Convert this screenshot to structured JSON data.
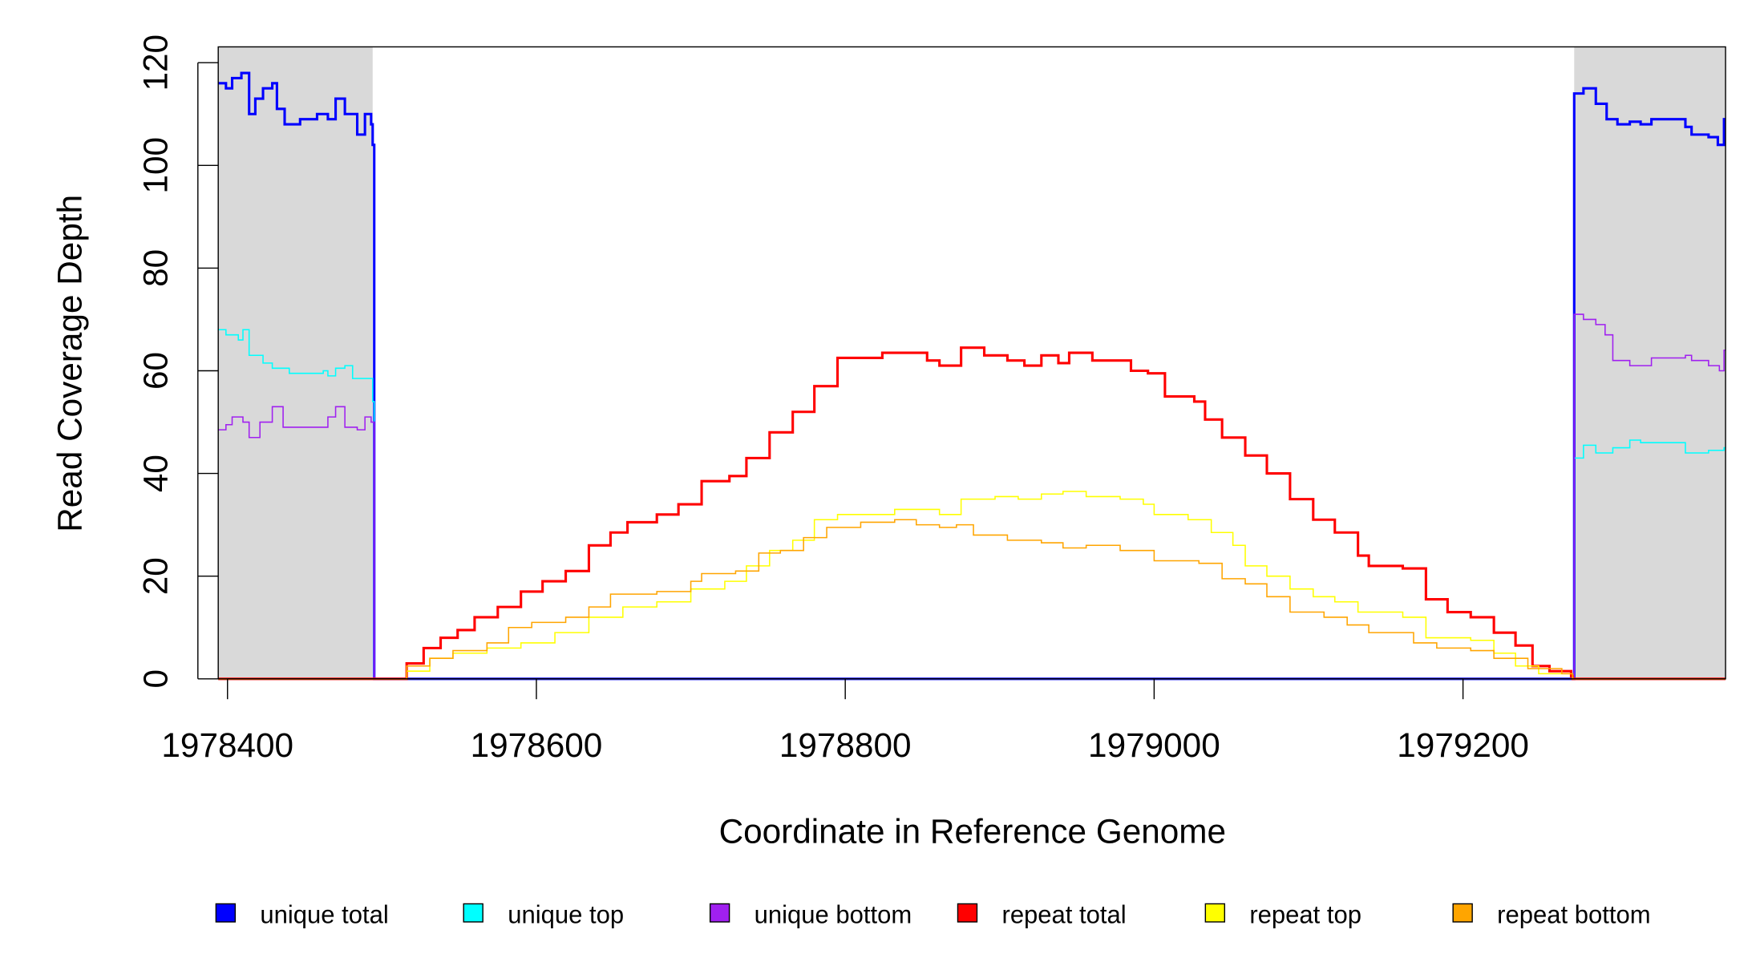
{
  "chart_data": {
    "type": "line",
    "title": "",
    "xlabel": "Coordinate in Reference Genome",
    "ylabel": "Read Coverage Depth",
    "xlim": [
      1978394,
      1979370
    ],
    "ylim": [
      0,
      120
    ],
    "x_ticks": [
      1978400,
      1978600,
      1978800,
      1979000,
      1979200
    ],
    "x_tick_labels": [
      "1978400",
      "1978600",
      "1978800",
      "1979000",
      "1979200"
    ],
    "y_ticks": [
      0,
      20,
      40,
      60,
      80,
      100,
      120
    ],
    "y_tick_labels": [
      "0",
      "20",
      "40",
      "60",
      "80",
      "100",
      "120"
    ],
    "grid": false,
    "legend_position": "bottom",
    "shaded_regions": [
      {
        "x0": 1978394,
        "x1": 1978494,
        "color": "#d9d9d9"
      },
      {
        "x0": 1979272,
        "x1": 1979370,
        "color": "#d9d9d9"
      }
    ],
    "series": [
      {
        "name": "unique total",
        "color": "#0000ff",
        "weight": "thick",
        "points": [
          [
            1978394,
            116
          ],
          [
            1978399,
            115
          ],
          [
            1978403,
            117
          ],
          [
            1978409,
            118
          ],
          [
            1978414,
            110
          ],
          [
            1978418,
            113
          ],
          [
            1978423,
            115
          ],
          [
            1978429,
            116
          ],
          [
            1978432,
            111
          ],
          [
            1978437,
            108
          ],
          [
            1978447,
            109
          ],
          [
            1978458,
            110
          ],
          [
            1978465,
            109
          ],
          [
            1978470,
            113
          ],
          [
            1978476,
            110
          ],
          [
            1978484,
            106
          ],
          [
            1978489,
            110
          ],
          [
            1978493,
            108
          ],
          [
            1978494,
            104
          ],
          [
            1978495,
            0
          ],
          [
            1979272,
            114
          ],
          [
            1979278,
            115
          ],
          [
            1979286,
            112
          ],
          [
            1979293,
            109
          ],
          [
            1979300,
            108
          ],
          [
            1979308,
            108.5
          ],
          [
            1979315,
            108
          ],
          [
            1979322,
            109
          ],
          [
            1979344,
            107.5
          ],
          [
            1979348,
            106
          ],
          [
            1979359,
            105.5
          ],
          [
            1979365,
            104
          ],
          [
            1979369,
            109
          ],
          [
            1979370,
            109
          ]
        ]
      },
      {
        "name": "unique top",
        "color": "#00ffff",
        "weight": "thin",
        "points": [
          [
            1978394,
            68
          ],
          [
            1978399,
            67
          ],
          [
            1978407,
            66
          ],
          [
            1978410,
            68
          ],
          [
            1978414,
            63
          ],
          [
            1978423,
            61.5
          ],
          [
            1978429,
            60.5
          ],
          [
            1978440,
            59.5
          ],
          [
            1978462,
            60
          ],
          [
            1978465,
            59
          ],
          [
            1978470,
            60.5
          ],
          [
            1978476,
            61
          ],
          [
            1978481,
            58.5
          ],
          [
            1978493,
            58.5
          ],
          [
            1978494,
            54
          ],
          [
            1978495,
            0
          ],
          [
            1979272,
            43
          ],
          [
            1979278,
            45.5
          ],
          [
            1979286,
            44
          ],
          [
            1979297,
            45
          ],
          [
            1979308,
            46.5
          ],
          [
            1979315,
            46
          ],
          [
            1979344,
            44
          ],
          [
            1979359,
            44.5
          ],
          [
            1979369,
            45
          ],
          [
            1979370,
            45
          ]
        ]
      },
      {
        "name": "unique bottom",
        "color": "#a020f0",
        "weight": "thin",
        "points": [
          [
            1978394,
            48.5
          ],
          [
            1978399,
            49.5
          ],
          [
            1978403,
            51
          ],
          [
            1978410,
            50
          ],
          [
            1978414,
            47
          ],
          [
            1978421,
            50
          ],
          [
            1978429,
            53
          ],
          [
            1978436,
            49
          ],
          [
            1978458,
            49
          ],
          [
            1978465,
            51
          ],
          [
            1978470,
            53
          ],
          [
            1978476,
            49
          ],
          [
            1978484,
            48.5
          ],
          [
            1978489,
            51
          ],
          [
            1978493,
            50
          ],
          [
            1978495,
            0
          ],
          [
            1979272,
            71
          ],
          [
            1979278,
            70
          ],
          [
            1979286,
            69
          ],
          [
            1979292,
            67
          ],
          [
            1979297,
            62
          ],
          [
            1979308,
            61
          ],
          [
            1979322,
            62.5
          ],
          [
            1979344,
            63
          ],
          [
            1979348,
            62
          ],
          [
            1979359,
            61
          ],
          [
            1979366,
            60
          ],
          [
            1979369,
            64
          ],
          [
            1979370,
            64
          ]
        ]
      },
      {
        "name": "repeat total",
        "color": "#ff0000",
        "weight": "thick",
        "points": [
          [
            1978394,
            0
          ],
          [
            1978504,
            0
          ],
          [
            1978516,
            3
          ],
          [
            1978527,
            6
          ],
          [
            1978538,
            8
          ],
          [
            1978549,
            9.5
          ],
          [
            1978560,
            12
          ],
          [
            1978575,
            14
          ],
          [
            1978590,
            17
          ],
          [
            1978604,
            19
          ],
          [
            1978619,
            21
          ],
          [
            1978634,
            26
          ],
          [
            1978648,
            28.5
          ],
          [
            1978659,
            30.5
          ],
          [
            1978678,
            32
          ],
          [
            1978692,
            34
          ],
          [
            1978707,
            38.5
          ],
          [
            1978725,
            39.5
          ],
          [
            1978736,
            43
          ],
          [
            1978751,
            48
          ],
          [
            1978766,
            52
          ],
          [
            1978780,
            57
          ],
          [
            1978795,
            62.5
          ],
          [
            1978810,
            62.5
          ],
          [
            1978824,
            63.5
          ],
          [
            1978839,
            63.5
          ],
          [
            1978853,
            62
          ],
          [
            1978861,
            61
          ],
          [
            1978875,
            64.5
          ],
          [
            1978890,
            63
          ],
          [
            1978905,
            62
          ],
          [
            1978916,
            61
          ],
          [
            1978927,
            63
          ],
          [
            1978938,
            61.5
          ],
          [
            1978945,
            63.5
          ],
          [
            1978960,
            62
          ],
          [
            1978974,
            62
          ],
          [
            1978985,
            60
          ],
          [
            1978996,
            59.5
          ],
          [
            1979007,
            55
          ],
          [
            1979026,
            54
          ],
          [
            1979033,
            50.5
          ],
          [
            1979044,
            47
          ],
          [
            1979059,
            43.5
          ],
          [
            1979073,
            40
          ],
          [
            1979088,
            35
          ],
          [
            1979103,
            31
          ],
          [
            1979117,
            28.5
          ],
          [
            1979132,
            24
          ],
          [
            1979139,
            22
          ],
          [
            1979161,
            21.5
          ],
          [
            1979176,
            15.5
          ],
          [
            1979190,
            13
          ],
          [
            1979205,
            12
          ],
          [
            1979220,
            9
          ],
          [
            1979234,
            6.5
          ],
          [
            1979245,
            2.5
          ],
          [
            1979256,
            1.5
          ],
          [
            1979270,
            0.5
          ],
          [
            1979271,
            0
          ],
          [
            1979370,
            0
          ]
        ]
      },
      {
        "name": "repeat top",
        "color": "#ffff00",
        "weight": "thin",
        "points": [
          [
            1978394,
            0
          ],
          [
            1978504,
            0
          ],
          [
            1978516,
            1.5
          ],
          [
            1978531,
            4
          ],
          [
            1978546,
            5
          ],
          [
            1978568,
            6
          ],
          [
            1978590,
            7
          ],
          [
            1978612,
            9
          ],
          [
            1978634,
            12
          ],
          [
            1978656,
            14
          ],
          [
            1978678,
            15
          ],
          [
            1978700,
            17.5
          ],
          [
            1978722,
            19
          ],
          [
            1978736,
            22
          ],
          [
            1978751,
            25
          ],
          [
            1978766,
            27
          ],
          [
            1978780,
            31
          ],
          [
            1978795,
            32
          ],
          [
            1978810,
            32
          ],
          [
            1978832,
            33
          ],
          [
            1978853,
            33
          ],
          [
            1978861,
            32
          ],
          [
            1978875,
            35
          ],
          [
            1978897,
            35.5
          ],
          [
            1978912,
            35
          ],
          [
            1978927,
            36
          ],
          [
            1978941,
            36.5
          ],
          [
            1978956,
            35.5
          ],
          [
            1978978,
            35
          ],
          [
            1978993,
            34
          ],
          [
            1979000,
            32
          ],
          [
            1979022,
            31
          ],
          [
            1979037,
            28.5
          ],
          [
            1979051,
            26
          ],
          [
            1979059,
            22
          ],
          [
            1979073,
            20
          ],
          [
            1979088,
            17.5
          ],
          [
            1979103,
            16
          ],
          [
            1979117,
            15
          ],
          [
            1979132,
            13
          ],
          [
            1979161,
            12
          ],
          [
            1979176,
            8
          ],
          [
            1979205,
            7.5
          ],
          [
            1979220,
            5
          ],
          [
            1979234,
            2.5
          ],
          [
            1979249,
            1
          ],
          [
            1979271,
            0
          ],
          [
            1979370,
            0
          ]
        ]
      },
      {
        "name": "repeat bottom",
        "color": "#ffa500",
        "weight": "thin",
        "points": [
          [
            1978394,
            0
          ],
          [
            1978504,
            0
          ],
          [
            1978516,
            2.5
          ],
          [
            1978531,
            4
          ],
          [
            1978546,
            5.5
          ],
          [
            1978568,
            7
          ],
          [
            1978582,
            10
          ],
          [
            1978597,
            11
          ],
          [
            1978619,
            12
          ],
          [
            1978634,
            14
          ],
          [
            1978648,
            16.5
          ],
          [
            1978678,
            17
          ],
          [
            1978700,
            19
          ],
          [
            1978707,
            20.5
          ],
          [
            1978729,
            21
          ],
          [
            1978744,
            24.5
          ],
          [
            1978758,
            25
          ],
          [
            1978773,
            27.5
          ],
          [
            1978788,
            29.5
          ],
          [
            1978810,
            30.5
          ],
          [
            1978832,
            31
          ],
          [
            1978846,
            30
          ],
          [
            1978861,
            29.5
          ],
          [
            1978872,
            30
          ],
          [
            1978883,
            28
          ],
          [
            1978905,
            27
          ],
          [
            1978927,
            26.5
          ],
          [
            1978941,
            25.5
          ],
          [
            1978956,
            26
          ],
          [
            1978978,
            25
          ],
          [
            1979000,
            23
          ],
          [
            1979029,
            22.5
          ],
          [
            1979044,
            19.5
          ],
          [
            1979059,
            18.5
          ],
          [
            1979073,
            16
          ],
          [
            1979088,
            13
          ],
          [
            1979110,
            12
          ],
          [
            1979125,
            10.5
          ],
          [
            1979139,
            9
          ],
          [
            1979168,
            7
          ],
          [
            1979183,
            6
          ],
          [
            1979205,
            5.5
          ],
          [
            1979220,
            4
          ],
          [
            1979242,
            2
          ],
          [
            1979264,
            1
          ],
          [
            1979271,
            0
          ],
          [
            1979370,
            0
          ]
        ]
      }
    ]
  }
}
